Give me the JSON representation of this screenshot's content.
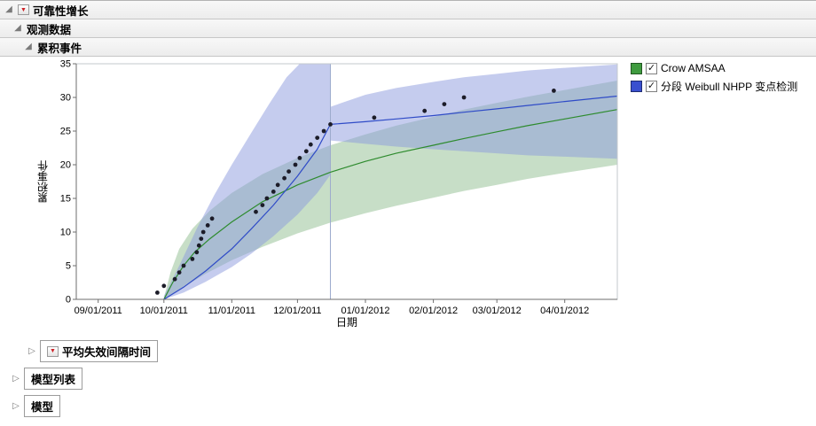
{
  "icons": {
    "disclosure_expanded": "◢",
    "disclosure_collapsed": "▷",
    "red_triangle_menu": "▼",
    "checkmark": "✓"
  },
  "outline": {
    "level1": {
      "label": "可靠性增长",
      "expanded": true,
      "has_red_triangle": true
    },
    "level2": {
      "label": "观测数据",
      "expanded": true
    },
    "level3": {
      "label": "累积事件",
      "expanded": true
    },
    "collapsed": [
      {
        "label": "平均失效间隔时间",
        "has_red_triangle": true
      },
      {
        "label": "模型列表"
      },
      {
        "label": "模型"
      }
    ]
  },
  "legend": {
    "check_glyph": "✓",
    "items": [
      {
        "label": "Crow AMSAA",
        "checked": true,
        "swatch_color": "#3f9b3f"
      },
      {
        "label": "分段 Weibull NHPP 变点检测",
        "checked": true,
        "swatch_color": "#3a50cf"
      }
    ]
  },
  "chart_data": {
    "type": "line",
    "title": "累积事件",
    "xlabel": "日期",
    "ylabel": "累积事件",
    "ylim": [
      0,
      35
    ],
    "y_ticks": [
      0,
      5,
      10,
      15,
      20,
      25,
      30,
      35
    ],
    "x_domain": [
      "08/22/2011",
      "04/25/2012"
    ],
    "x_ticks": [
      "09/01/2011",
      "10/01/2011",
      "11/01/2011",
      "12/01/2011",
      "01/01/2012",
      "02/01/2012",
      "03/01/2012",
      "04/01/2012"
    ],
    "grid": false,
    "legend_position": "top-right-outside",
    "point_color": "#1c1c28",
    "observed_points": [
      [
        "09/28/2011",
        1
      ],
      [
        "10/01/2011",
        2
      ],
      [
        "10/06/2011",
        3
      ],
      [
        "10/08/2011",
        4
      ],
      [
        "10/10/2011",
        5
      ],
      [
        "10/14/2011",
        6
      ],
      [
        "10/16/2011",
        7
      ],
      [
        "10/17/2011",
        8
      ],
      [
        "10/18/2011",
        9
      ],
      [
        "10/19/2011",
        10
      ],
      [
        "10/21/2011",
        11
      ],
      [
        "10/23/2011",
        12
      ],
      [
        "11/12/2011",
        13
      ],
      [
        "11/15/2011",
        14
      ],
      [
        "11/17/2011",
        15
      ],
      [
        "11/20/2011",
        16
      ],
      [
        "11/22/2011",
        17
      ],
      [
        "11/25/2011",
        18
      ],
      [
        "11/27/2011",
        19
      ],
      [
        "11/30/2011",
        20
      ],
      [
        "12/02/2011",
        21
      ],
      [
        "12/05/2011",
        22
      ],
      [
        "12/07/2011",
        23
      ],
      [
        "12/10/2011",
        24
      ],
      [
        "12/13/2011",
        25
      ],
      [
        "12/16/2011",
        26
      ],
      [
        "01/05/2012",
        27
      ],
      [
        "01/28/2012",
        28
      ],
      [
        "02/06/2012",
        29
      ],
      [
        "02/15/2012",
        30
      ],
      [
        "03/27/2012",
        31
      ]
    ],
    "series": [
      {
        "name": "Crow AMSAA",
        "color": "#2e8b2e",
        "band_color": "#8fbe8f",
        "line": [
          [
            "10/01/2011",
            0
          ],
          [
            "10/05/2011",
            2.5
          ],
          [
            "10/10/2011",
            5
          ],
          [
            "10/15/2011",
            7
          ],
          [
            "10/22/2011",
            9
          ],
          [
            "11/01/2011",
            11.5
          ],
          [
            "11/15/2011",
            14.5
          ],
          [
            "12/01/2011",
            17
          ],
          [
            "12/16/2011",
            18.9
          ],
          [
            "01/01/2012",
            20.5
          ],
          [
            "01/15/2012",
            21.7
          ],
          [
            "02/01/2012",
            22.9
          ],
          [
            "02/15/2012",
            23.9
          ],
          [
            "03/01/2012",
            24.9
          ],
          [
            "03/15/2012",
            25.8
          ],
          [
            "04/01/2012",
            26.8
          ],
          [
            "04/25/2012",
            28.2
          ]
        ],
        "band_upper": [
          [
            "10/01/2011",
            0.2
          ],
          [
            "10/04/2011",
            4
          ],
          [
            "10/08/2011",
            7.5
          ],
          [
            "10/14/2011",
            10.5
          ],
          [
            "10/22/2011",
            13.2
          ],
          [
            "11/01/2011",
            15.8
          ],
          [
            "11/15/2011",
            18.6
          ],
          [
            "12/01/2011",
            21
          ],
          [
            "12/16/2011",
            22.9
          ],
          [
            "01/01/2012",
            24.5
          ],
          [
            "01/15/2012",
            25.8
          ],
          [
            "02/01/2012",
            27.1
          ],
          [
            "02/15/2012",
            28.2
          ],
          [
            "03/01/2012",
            29.2
          ],
          [
            "03/15/2012",
            30.1
          ],
          [
            "04/01/2012",
            31.1
          ],
          [
            "04/25/2012",
            32.5
          ]
        ],
        "band_lower": [
          [
            "10/01/2011",
            0
          ],
          [
            "10/06/2011",
            1
          ],
          [
            "10/12/2011",
            2.2
          ],
          [
            "10/20/2011",
            3.8
          ],
          [
            "11/01/2011",
            5.8
          ],
          [
            "11/15/2011",
            7.8
          ],
          [
            "12/01/2011",
            9.8
          ],
          [
            "12/16/2011",
            11.4
          ],
          [
            "01/01/2012",
            12.8
          ],
          [
            "01/15/2012",
            13.9
          ],
          [
            "02/01/2012",
            15.1
          ],
          [
            "02/15/2012",
            16.1
          ],
          [
            "03/01/2012",
            17
          ],
          [
            "03/15/2012",
            17.9
          ],
          [
            "04/01/2012",
            18.8
          ],
          [
            "04/25/2012",
            20
          ]
        ]
      },
      {
        "name": "分段 Weibull NHPP 变点检测",
        "color": "#2f4bc7",
        "band_color": "#8c99dd",
        "change_point": {
          "date": "12/16/2011",
          "value": 26
        },
        "segments": [
          {
            "line": [
              [
                "10/01/2011",
                0
              ],
              [
                "10/10/2011",
                1.8
              ],
              [
                "10/20/2011",
                4.2
              ],
              [
                "11/01/2011",
                7.5
              ],
              [
                "11/10/2011",
                10.5
              ],
              [
                "11/20/2011",
                14
              ],
              [
                "12/01/2011",
                18.3
              ],
              [
                "12/10/2011",
                22.3
              ],
              [
                "12/16/2011",
                26
              ]
            ],
            "band_upper": [
              [
                "10/01/2011",
                0.5
              ],
              [
                "10/08/2011",
                5
              ],
              [
                "10/16/2011",
                10.5
              ],
              [
                "10/24/2011",
                15.5
              ],
              [
                "11/01/2011",
                20
              ],
              [
                "11/10/2011",
                24.8
              ],
              [
                "11/18/2011",
                29
              ],
              [
                "11/26/2011",
                33
              ],
              [
                "12/02/2011",
                35
              ],
              [
                "12/16/2011",
                35
              ]
            ],
            "band_lower": [
              [
                "10/01/2011",
                0
              ],
              [
                "10/10/2011",
                1
              ],
              [
                "10/20/2011",
                2.6
              ],
              [
                "11/01/2011",
                4.8
              ],
              [
                "11/10/2011",
                6.8
              ],
              [
                "11/20/2011",
                9.4
              ],
              [
                "12/01/2011",
                12.6
              ],
              [
                "12/10/2011",
                15.8
              ],
              [
                "12/16/2011",
                18.5
              ]
            ]
          },
          {
            "line": [
              [
                "12/16/2011",
                26
              ],
              [
                "01/01/2012",
                26.4
              ],
              [
                "01/15/2012",
                26.8
              ],
              [
                "02/01/2012",
                27.3
              ],
              [
                "02/15/2012",
                27.8
              ],
              [
                "03/01/2012",
                28.3
              ],
              [
                "03/15/2012",
                28.8
              ],
              [
                "04/01/2012",
                29.4
              ],
              [
                "04/25/2012",
                30.2
              ]
            ],
            "band_upper": [
              [
                "12/16/2011",
                28.6
              ],
              [
                "01/01/2012",
                30.4
              ],
              [
                "01/15/2012",
                31.4
              ],
              [
                "02/01/2012",
                32.3
              ],
              [
                "02/15/2012",
                33
              ],
              [
                "03/01/2012",
                33.5
              ],
              [
                "03/15/2012",
                34
              ],
              [
                "04/01/2012",
                34.4
              ],
              [
                "04/25/2012",
                34.9
              ]
            ],
            "band_lower": [
              [
                "12/16/2011",
                23.6
              ],
              [
                "01/01/2012",
                23.1
              ],
              [
                "01/15/2012",
                22.7
              ],
              [
                "02/01/2012",
                22.3
              ],
              [
                "02/15/2012",
                22
              ],
              [
                "03/01/2012",
                21.7
              ],
              [
                "03/15/2012",
                21.4
              ],
              [
                "04/01/2012",
                21.2
              ],
              [
                "04/25/2012",
                20.9
              ]
            ]
          }
        ]
      }
    ]
  }
}
